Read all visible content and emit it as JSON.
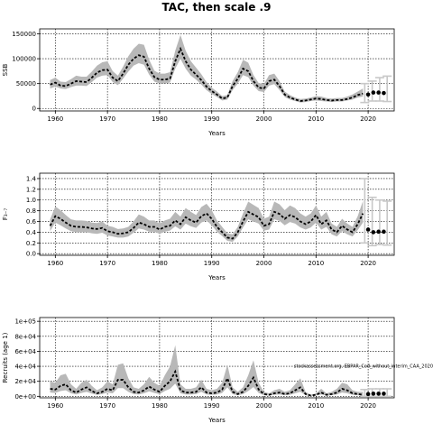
{
  "title": "TAC, then scale .9",
  "colors": {
    "band": "#b8b8b8",
    "line": "#000000",
    "projection": "#c8c8c8",
    "grid": "#000000"
  },
  "chart_data": [
    {
      "type": "line",
      "ylabel": "SSB",
      "xlabel": "Years",
      "xlim": [
        1957,
        2025
      ],
      "ylim": [
        -5000,
        160000
      ],
      "xticks": [
        1960,
        1970,
        1980,
        1990,
        2000,
        2010,
        2020
      ],
      "yticks": [
        0,
        50000,
        100000,
        150000
      ],
      "ytick_labels": [
        "0",
        "50000",
        "100000",
        "150000"
      ],
      "grid": true,
      "x": [
        1959,
        1960,
        1961,
        1962,
        1963,
        1964,
        1965,
        1966,
        1967,
        1968,
        1969,
        1970,
        1971,
        1972,
        1973,
        1974,
        1975,
        1976,
        1977,
        1978,
        1979,
        1980,
        1981,
        1982,
        1983,
        1984,
        1985,
        1986,
        1987,
        1988,
        1989,
        1990,
        1991,
        1992,
        1993,
        1994,
        1995,
        1996,
        1997,
        1998,
        1999,
        2000,
        2001,
        2002,
        2003,
        2004,
        2005,
        2006,
        2007,
        2008,
        2009,
        2010,
        2011,
        2012,
        2013,
        2014,
        2015,
        2016,
        2017,
        2018,
        2019
      ],
      "median": [
        48000,
        52000,
        46000,
        45000,
        50000,
        55000,
        54000,
        53000,
        62000,
        72000,
        77000,
        78000,
        62000,
        55000,
        70000,
        88000,
        100000,
        107000,
        104000,
        80000,
        63000,
        58000,
        58000,
        60000,
        95000,
        120000,
        95000,
        78000,
        68000,
        57000,
        44000,
        35000,
        28000,
        20000,
        22000,
        45000,
        60000,
        80000,
        75000,
        55000,
        42000,
        40000,
        55000,
        58000,
        45000,
        28000,
        22000,
        18000,
        15000,
        16000,
        18000,
        20000,
        19000,
        17000,
        16000,
        17000,
        17000,
        19000,
        22000,
        27000,
        30000
      ],
      "lower": [
        40000,
        44000,
        40000,
        39000,
        43000,
        46000,
        46000,
        45000,
        53000,
        62000,
        66000,
        67000,
        53000,
        47000,
        60000,
        74000,
        86000,
        91000,
        88000,
        68000,
        54000,
        50000,
        50000,
        52000,
        80000,
        100000,
        80000,
        66000,
        58000,
        48000,
        37000,
        29000,
        23000,
        16000,
        18000,
        37000,
        50000,
        67000,
        63000,
        46000,
        35000,
        33000,
        46000,
        49000,
        37000,
        23000,
        18000,
        15000,
        12000,
        13000,
        15000,
        16000,
        15000,
        14000,
        13000,
        14000,
        14000,
        16000,
        18000,
        22000,
        24000
      ],
      "upper": [
        57000,
        62000,
        54000,
        53000,
        59000,
        66000,
        64000,
        64000,
        74000,
        86000,
        93000,
        95000,
        75000,
        66000,
        84000,
        105000,
        120000,
        130000,
        128000,
        98000,
        76000,
        70000,
        70000,
        73000,
        116000,
        148000,
        116000,
        95000,
        82000,
        69000,
        53000,
        42000,
        34000,
        25000,
        27000,
        55000,
        73000,
        98000,
        92000,
        67000,
        51000,
        49000,
        67000,
        70000,
        55000,
        34000,
        27000,
        22000,
        19000,
        20000,
        22000,
        25000,
        24000,
        21000,
        20000,
        21000,
        21000,
        24000,
        28000,
        34000,
        40000
      ],
      "proj_x": [
        2020,
        2021,
        2022,
        2023
      ],
      "proj_median": [
        28000,
        32000,
        32000,
        31000
      ],
      "proj_lower": [
        12000,
        15000,
        15000,
        14000
      ],
      "proj_upper": [
        50000,
        55000,
        62000,
        65000
      ]
    },
    {
      "type": "line",
      "ylabel": "F₃₋₇",
      "xlabel": "Years",
      "xlim": [
        1957,
        2025
      ],
      "ylim": [
        -0.03,
        1.5
      ],
      "xticks": [
        1960,
        1970,
        1980,
        1990,
        2000,
        2010,
        2020
      ],
      "yticks": [
        0,
        0.2,
        0.4,
        0.6,
        0.8,
        1.0,
        1.2,
        1.4
      ],
      "ytick_labels": [
        "0.0",
        "0.2",
        "0.4",
        "0.6",
        "0.8",
        "1.0",
        "1.2",
        "1.4"
      ],
      "grid": true,
      "x": [
        1959,
        1960,
        1961,
        1962,
        1963,
        1964,
        1965,
        1966,
        1967,
        1968,
        1969,
        1970,
        1971,
        1972,
        1973,
        1974,
        1975,
        1976,
        1977,
        1978,
        1979,
        1980,
        1981,
        1982,
        1983,
        1984,
        1985,
        1986,
        1987,
        1988,
        1989,
        1990,
        1991,
        1992,
        1993,
        1994,
        1995,
        1996,
        1997,
        1998,
        1999,
        2000,
        2001,
        2002,
        2003,
        2004,
        2005,
        2006,
        2007,
        2008,
        2009,
        2010,
        2011,
        2012,
        2013,
        2014,
        2015,
        2016,
        2017,
        2018,
        2019
      ],
      "median": [
        0.52,
        0.7,
        0.65,
        0.58,
        0.52,
        0.5,
        0.5,
        0.49,
        0.47,
        0.46,
        0.48,
        0.42,
        0.4,
        0.37,
        0.38,
        0.4,
        0.48,
        0.58,
        0.55,
        0.5,
        0.5,
        0.45,
        0.5,
        0.52,
        0.62,
        0.55,
        0.68,
        0.62,
        0.58,
        0.7,
        0.75,
        0.65,
        0.5,
        0.4,
        0.3,
        0.28,
        0.4,
        0.6,
        0.78,
        0.73,
        0.68,
        0.52,
        0.55,
        0.78,
        0.74,
        0.65,
        0.72,
        0.68,
        0.6,
        0.55,
        0.6,
        0.72,
        0.55,
        0.62,
        0.45,
        0.4,
        0.52,
        0.45,
        0.4,
        0.55,
        0.75
      ],
      "lower": [
        0.42,
        0.58,
        0.53,
        0.47,
        0.42,
        0.4,
        0.4,
        0.4,
        0.38,
        0.37,
        0.39,
        0.34,
        0.32,
        0.3,
        0.3,
        0.32,
        0.39,
        0.47,
        0.45,
        0.41,
        0.41,
        0.37,
        0.41,
        0.43,
        0.51,
        0.45,
        0.56,
        0.51,
        0.48,
        0.58,
        0.62,
        0.53,
        0.41,
        0.33,
        0.24,
        0.22,
        0.32,
        0.49,
        0.64,
        0.6,
        0.56,
        0.43,
        0.45,
        0.64,
        0.61,
        0.53,
        0.59,
        0.56,
        0.49,
        0.45,
        0.49,
        0.58,
        0.45,
        0.5,
        0.36,
        0.32,
        0.42,
        0.36,
        0.32,
        0.44,
        0.58
      ],
      "upper": [
        0.64,
        0.88,
        0.81,
        0.72,
        0.64,
        0.62,
        0.62,
        0.61,
        0.58,
        0.57,
        0.6,
        0.52,
        0.5,
        0.46,
        0.47,
        0.5,
        0.6,
        0.73,
        0.69,
        0.62,
        0.62,
        0.56,
        0.62,
        0.65,
        0.78,
        0.69,
        0.85,
        0.78,
        0.72,
        0.87,
        0.93,
        0.81,
        0.62,
        0.5,
        0.38,
        0.36,
        0.5,
        0.75,
        0.97,
        0.91,
        0.85,
        0.65,
        0.69,
        0.97,
        0.92,
        0.81,
        0.9,
        0.85,
        0.75,
        0.69,
        0.75,
        0.9,
        0.69,
        0.78,
        0.56,
        0.5,
        0.65,
        0.56,
        0.5,
        0.7,
        0.98
      ],
      "proj_x": [
        2020,
        2021,
        2022,
        2023
      ],
      "proj_median": [
        0.45,
        0.4,
        0.41,
        0.41
      ],
      "proj_lower": [
        0.2,
        0.15,
        0.17,
        0.16
      ],
      "proj_upper": [
        1.4,
        1.05,
        1.0,
        0.98
      ]
    },
    {
      "type": "line",
      "ylabel": "Recruits (age 1)",
      "xlabel": "Years",
      "xlim": [
        1957,
        2025
      ],
      "ylim": [
        -2000,
        105000
      ],
      "xticks": [
        1960,
        1970,
        1980,
        1990,
        2000,
        2010,
        2020
      ],
      "yticks": [
        0,
        20000,
        40000,
        60000,
        80000,
        100000
      ],
      "ytick_labels": [
        "0e+00",
        "2e+04",
        "4e+04",
        "6e+04",
        "8e+04",
        "1e+05"
      ],
      "grid": true,
      "annotation": "stockassessment.org, EBPAR_Cod_without_interim_CAA_2020",
      "x": [
        1959,
        1960,
        1961,
        1962,
        1963,
        1964,
        1965,
        1966,
        1967,
        1968,
        1969,
        1970,
        1971,
        1972,
        1973,
        1974,
        1975,
        1976,
        1977,
        1978,
        1979,
        1980,
        1981,
        1982,
        1983,
        1984,
        1985,
        1986,
        1987,
        1988,
        1989,
        1990,
        1991,
        1992,
        1993,
        1994,
        1995,
        1996,
        1997,
        1998,
        1999,
        2000,
        2001,
        2002,
        2003,
        2004,
        2005,
        2006,
        2007,
        2008,
        2009,
        2010,
        2011,
        2012,
        2013,
        2014,
        2015,
        2016,
        2017,
        2018,
        2019
      ],
      "median": [
        10000,
        9000,
        14000,
        16000,
        8000,
        5000,
        9000,
        12000,
        7000,
        4000,
        6000,
        10000,
        8000,
        22000,
        22000,
        12000,
        6000,
        5000,
        8000,
        13000,
        9000,
        6000,
        14000,
        20000,
        33000,
        8000,
        5000,
        5000,
        6000,
        12000,
        5000,
        4000,
        5000,
        9000,
        24000,
        6000,
        3000,
        6000,
        14000,
        25000,
        9000,
        3000,
        2000,
        4000,
        5000,
        3000,
        4000,
        8000,
        12000,
        3000,
        1000,
        2000,
        5000,
        2000,
        3000,
        5000,
        10000,
        8000,
        4000,
        3000,
        2000
      ],
      "lower": [
        5000,
        4500,
        7000,
        8000,
        4000,
        2500,
        4500,
        6000,
        3500,
        2000,
        3000,
        5000,
        4000,
        11000,
        11000,
        6000,
        3000,
        2500,
        4000,
        6500,
        4500,
        3000,
        7000,
        10000,
        17000,
        4000,
        2500,
        2500,
        3000,
        6000,
        2500,
        2000,
        2500,
        4500,
        12000,
        3000,
        1500,
        3000,
        7000,
        12500,
        4500,
        1500,
        1000,
        2000,
        2500,
        1500,
        2000,
        4000,
        6000,
        1500,
        500,
        1000,
        2500,
        1000,
        1500,
        2500,
        5000,
        4000,
        2000,
        1500,
        1000
      ],
      "upper": [
        20000,
        18000,
        28000,
        30000,
        16000,
        10000,
        18000,
        22000,
        14000,
        8000,
        12000,
        20000,
        16000,
        42000,
        44000,
        24000,
        12000,
        10000,
        16000,
        26000,
        18000,
        14000,
        28000,
        40000,
        68000,
        16000,
        10000,
        10000,
        12000,
        22000,
        10000,
        8000,
        10000,
        18000,
        42000,
        12000,
        6000,
        12000,
        28000,
        48000,
        18000,
        6000,
        4000,
        8000,
        10000,
        6000,
        8000,
        16000,
        24000,
        6000,
        2000,
        4000,
        10000,
        4000,
        6000,
        10000,
        18000,
        16000,
        8000,
        6000,
        6000
      ],
      "proj_x": [
        2020,
        2021,
        2022,
        2023
      ],
      "proj_median": [
        3000,
        3500,
        3500,
        3500
      ],
      "proj_lower": [
        0,
        0,
        0,
        0
      ],
      "proj_upper": [
        9000,
        10000,
        10000,
        10000
      ]
    }
  ]
}
